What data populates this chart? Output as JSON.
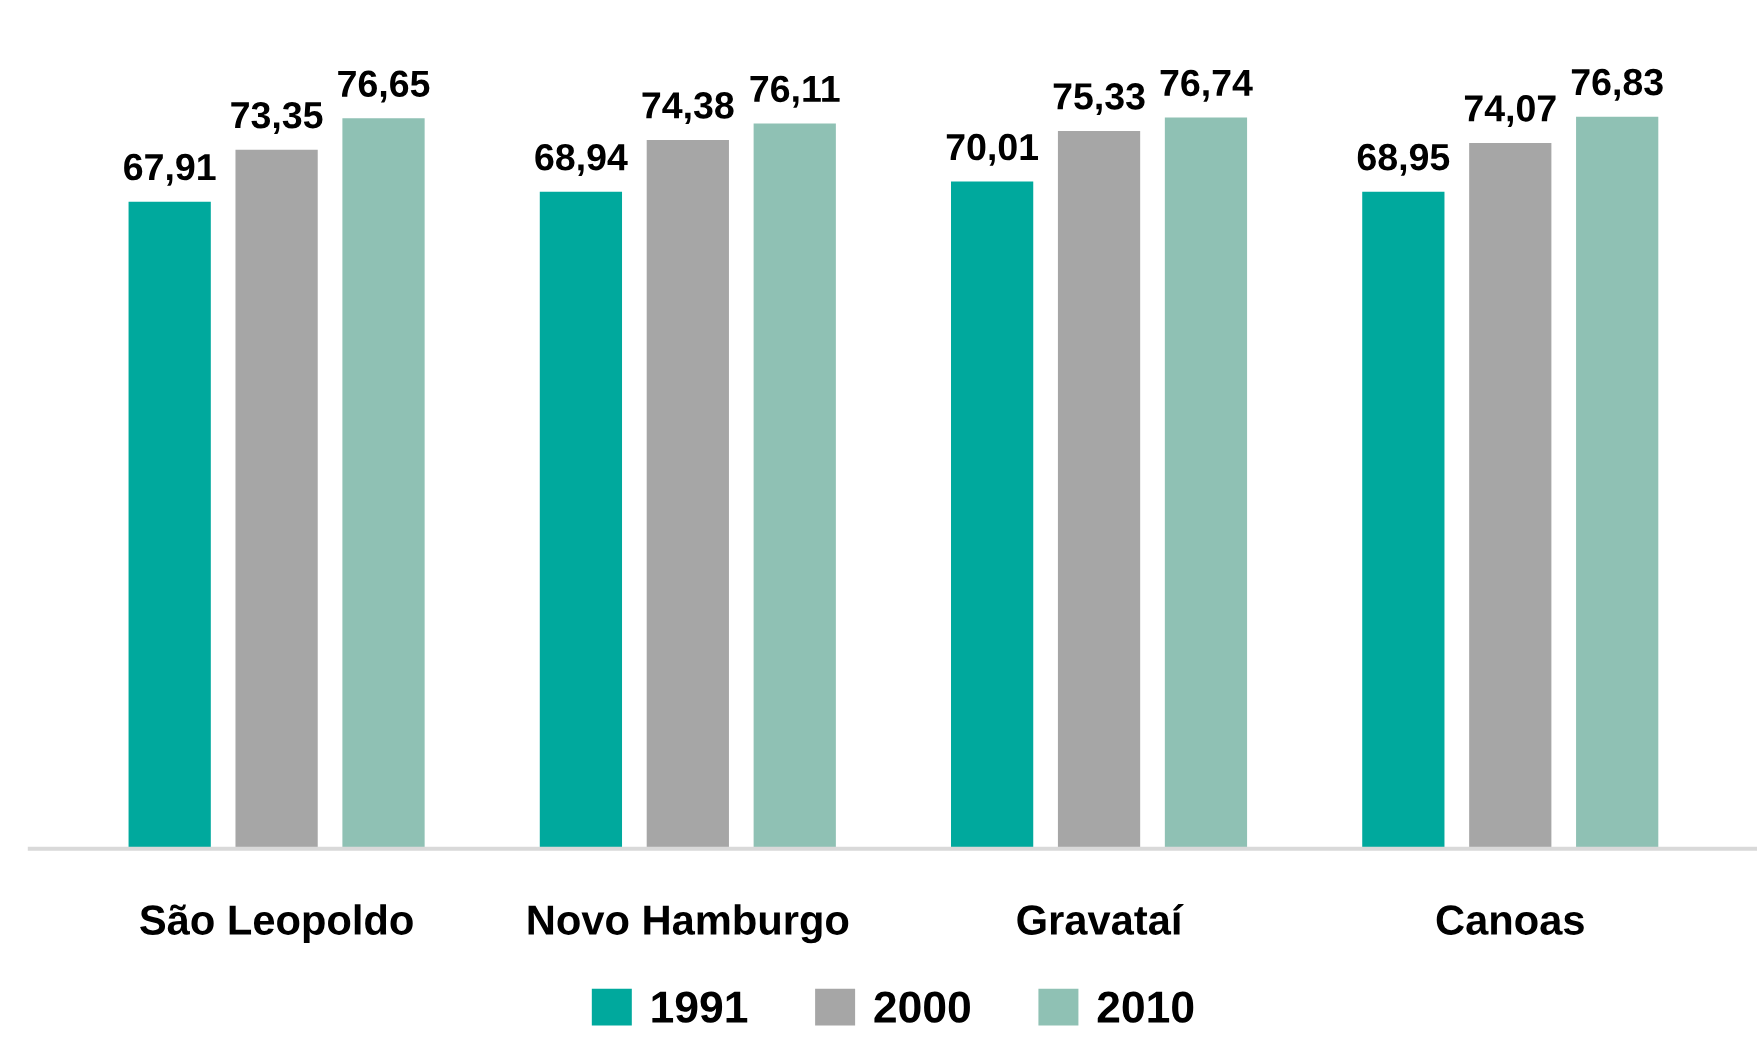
{
  "chart_data": {
    "type": "bar",
    "categories": [
      "São Leopoldo",
      "Novo Hamburgo",
      "Gravataí",
      "Canoas"
    ],
    "series": [
      {
        "name": "1991",
        "color": "#00a99d",
        "values": [
          67.91,
          68.94,
          70.01,
          68.95
        ],
        "value_labels": [
          "67,91",
          "68,94",
          "70,01",
          "68,95"
        ]
      },
      {
        "name": "2000",
        "color": "#a6a6a6",
        "values": [
          73.35,
          74.38,
          75.33,
          74.07
        ],
        "value_labels": [
          "73,35",
          "74,38",
          "75,33",
          "74,07"
        ]
      },
      {
        "name": "2010",
        "color": "#8fc1b4",
        "values": [
          76.65,
          76.11,
          76.74,
          76.83
        ],
        "value_labels": [
          "76,65",
          "76,11",
          "76,74",
          "76,83"
        ]
      }
    ],
    "tick_labels": "x",
    "grid": false,
    "legend": "bottom"
  }
}
